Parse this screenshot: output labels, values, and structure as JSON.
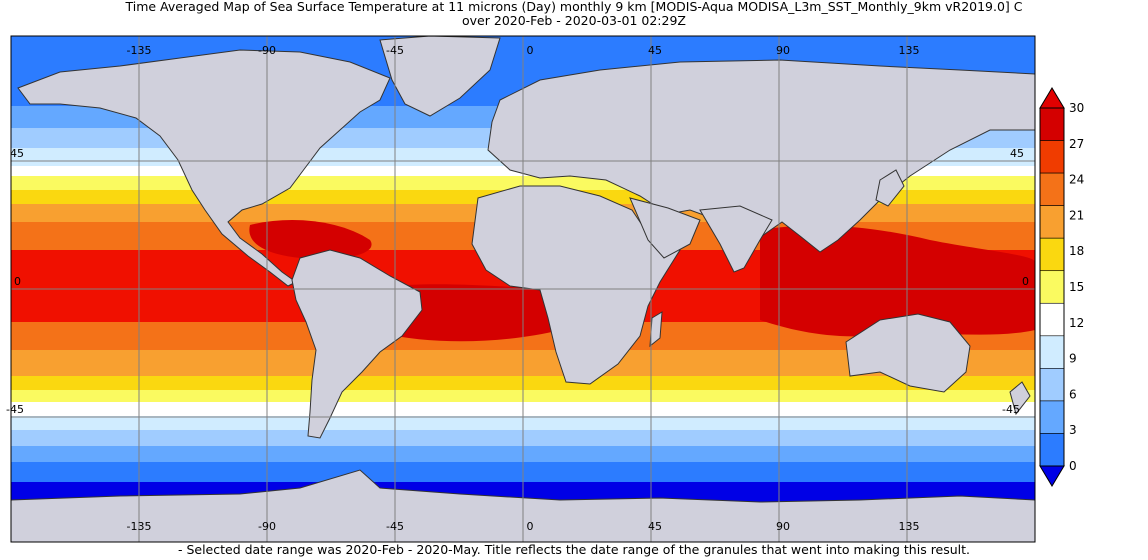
{
  "title": {
    "line1": "Time Averaged Map of Sea Surface Temperature at 11 microns (Day) monthly 9 km [MODIS-Aqua MODISA_L3m_SST_Monthly_9km vR2019.0] C",
    "line2": "over 2020-Feb - 2020-03-01 02:29Z"
  },
  "map": {
    "lon_ticks": [
      "-135",
      "-90",
      "-45",
      "0",
      "45",
      "90",
      "135"
    ],
    "lat_ticks": [
      "45",
      "0",
      "-45"
    ],
    "colors": {
      "land": "#d0d0dc",
      "coast": "#333333",
      "grid": "#808080"
    }
  },
  "colorbar": {
    "ticks": [
      "30",
      "27",
      "24",
      "21",
      "18",
      "15",
      "12",
      "9",
      "6",
      "3",
      "0"
    ],
    "colors": [
      "#d40000",
      "#f03c00",
      "#f47218",
      "#f8a030",
      "#fad810",
      "#fafa60",
      "#ffffff",
      "#d0ecff",
      "#a0ccff",
      "#64a8ff",
      "#2c7cff"
    ],
    "over_color": "#e00000",
    "under_color": "#0000e6"
  },
  "footer": "- Selected date range was 2020-Feb - 2020-May. Title reflects the date range of the granules that went into making this result."
}
